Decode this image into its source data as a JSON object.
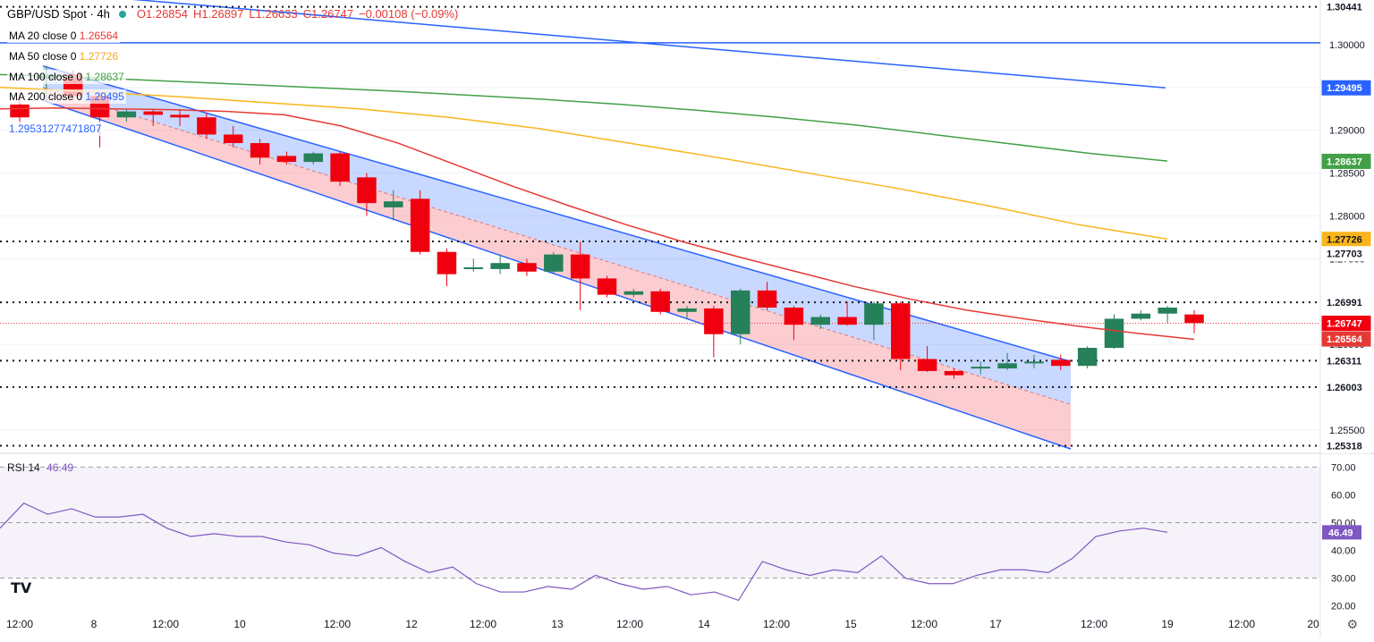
{
  "header": {
    "symbol": "GBP/USD Spot · 4h",
    "o": "O1.26854",
    "h": "H1.26897",
    "l": "L1.26633",
    "c": "C1.26747",
    "chg": "−0.00108 (−0.09%)"
  },
  "ma_legend": [
    {
      "label": "MA 20 close 0",
      "value": "1.26564",
      "color": "#f23645"
    },
    {
      "label": "MA 50 close 0",
      "value": "1.27726",
      "color": "#f5a623"
    },
    {
      "label": "MA 100 close 0",
      "value": "1.28637",
      "color": "#43a047"
    },
    {
      "label": "MA 200 close 0",
      "value": "1.29495",
      "color": "#2962ff"
    }
  ],
  "extra_value": "1.29531277471807",
  "rsi_legend": {
    "label": "RSI 14",
    "value": "46.49"
  },
  "colors": {
    "up": "#26805a",
    "down": "#f0000f",
    "ma20": "#e53935",
    "ma50": "#f9b51b",
    "ma100": "#43a047",
    "ma200": "#2962ff",
    "rsi": "#7e57c2"
  },
  "chart_data": {
    "type": "candlestick",
    "title": "GBP/USD Spot · 4h",
    "y_ticks": [
      "1.30000",
      "1.29500",
      "1.29000",
      "1.28500",
      "1.28000",
      "1.27500",
      "1.27000",
      "1.26500",
      "1.26000",
      "1.25500"
    ],
    "x_ticks": [
      "12:00",
      "8",
      "12:00",
      "10",
      "12:00",
      "12",
      "12:00",
      "13",
      "12:00",
      "14",
      "12:00",
      "15",
      "12:00",
      "17",
      "12:00",
      "19",
      "12:00",
      "20"
    ],
    "ylim": [
      1.2525,
      1.3052
    ],
    "horizontal_levels": [
      1.30441,
      1.27703,
      1.26991,
      1.26311,
      1.26003,
      1.25318
    ],
    "price_labels": [
      {
        "text": "1.30441",
        "bg": "#ffffff",
        "fg": "#131722"
      },
      {
        "text": "1.29495",
        "bg": "#2962ff",
        "fg": "#ffffff"
      },
      {
        "text": "1.28637",
        "bg": "#43a047",
        "fg": "#ffffff"
      },
      {
        "text": "1.27726",
        "bg": "#f9b51b",
        "fg": "#131722"
      },
      {
        "text": "1.27703",
        "bg": "#ffffff",
        "fg": "#131722"
      },
      {
        "text": "1.26991",
        "bg": "#ffffff",
        "fg": "#131722"
      },
      {
        "text": "1.26747",
        "bg": "#f0000f",
        "fg": "#ffffff"
      },
      {
        "text": "1.26564",
        "bg": "#e53935",
        "fg": "#ffffff"
      },
      {
        "text": "1.26311",
        "bg": "#ffffff",
        "fg": "#131722"
      },
      {
        "text": "1.26003",
        "bg": "#ffffff",
        "fg": "#131722"
      },
      {
        "text": "1.25318",
        "bg": "#ffffff",
        "fg": "#131722"
      }
    ],
    "candles": [
      {
        "o": 1.293,
        "h": 1.2945,
        "l": 1.2905,
        "c": 1.2915
      },
      {
        "o": 1.296,
        "h": 1.2975,
        "l": 1.2935,
        "c": 1.2965
      },
      {
        "o": 1.2965,
        "h": 1.297,
        "l": 1.2935,
        "c": 1.294
      },
      {
        "o": 1.294,
        "h": 1.2945,
        "l": 1.288,
        "c": 1.2915
      },
      {
        "o": 1.2915,
        "h": 1.2925,
        "l": 1.291,
        "c": 1.2922
      },
      {
        "o": 1.2922,
        "h": 1.2925,
        "l": 1.2905,
        "c": 1.2918
      },
      {
        "o": 1.2918,
        "h": 1.2925,
        "l": 1.2905,
        "c": 1.2915
      },
      {
        "o": 1.2915,
        "h": 1.292,
        "l": 1.289,
        "c": 1.2895
      },
      {
        "o": 1.2895,
        "h": 1.2905,
        "l": 1.288,
        "c": 1.2885
      },
      {
        "o": 1.2885,
        "h": 1.289,
        "l": 1.286,
        "c": 1.2868
      },
      {
        "o": 1.287,
        "h": 1.2875,
        "l": 1.286,
        "c": 1.2863
      },
      {
        "o": 1.2863,
        "h": 1.2875,
        "l": 1.286,
        "c": 1.2873
      },
      {
        "o": 1.2873,
        "h": 1.2875,
        "l": 1.2835,
        "c": 1.284
      },
      {
        "o": 1.2845,
        "h": 1.285,
        "l": 1.28,
        "c": 1.2815
      },
      {
        "o": 1.281,
        "h": 1.283,
        "l": 1.2795,
        "c": 1.2817
      },
      {
        "o": 1.282,
        "h": 1.283,
        "l": 1.2755,
        "c": 1.2758
      },
      {
        "o": 1.2758,
        "h": 1.2762,
        "l": 1.2718,
        "c": 1.2732
      },
      {
        "o": 1.2738,
        "h": 1.275,
        "l": 1.2735,
        "c": 1.274
      },
      {
        "o": 1.2738,
        "h": 1.2755,
        "l": 1.2732,
        "c": 1.2745
      },
      {
        "o": 1.2745,
        "h": 1.275,
        "l": 1.273,
        "c": 1.2735
      },
      {
        "o": 1.2735,
        "h": 1.2758,
        "l": 1.2732,
        "c": 1.2755
      },
      {
        "o": 1.2755,
        "h": 1.277,
        "l": 1.269,
        "c": 1.2727
      },
      {
        "o": 1.2727,
        "h": 1.273,
        "l": 1.2705,
        "c": 1.2708
      },
      {
        "o": 1.2708,
        "h": 1.2715,
        "l": 1.2705,
        "c": 1.2712
      },
      {
        "o": 1.2712,
        "h": 1.2715,
        "l": 1.2685,
        "c": 1.2688
      },
      {
        "o": 1.2688,
        "h": 1.2695,
        "l": 1.268,
        "c": 1.2692
      },
      {
        "o": 1.2692,
        "h": 1.2695,
        "l": 1.2635,
        "c": 1.2662
      },
      {
        "o": 1.2662,
        "h": 1.2715,
        "l": 1.265,
        "c": 1.2713
      },
      {
        "o": 1.2713,
        "h": 1.2723,
        "l": 1.269,
        "c": 1.2693
      },
      {
        "o": 1.2693,
        "h": 1.2695,
        "l": 1.2655,
        "c": 1.2673
      },
      {
        "o": 1.2673,
        "h": 1.2685,
        "l": 1.2668,
        "c": 1.2682
      },
      {
        "o": 1.2682,
        "h": 1.27,
        "l": 1.2672,
        "c": 1.2673
      },
      {
        "o": 1.2673,
        "h": 1.27,
        "l": 1.2655,
        "c": 1.2698
      },
      {
        "o": 1.2698,
        "h": 1.27,
        "l": 1.262,
        "c": 1.2633
      },
      {
        "o": 1.2633,
        "h": 1.2648,
        "l": 1.2618,
        "c": 1.2619
      },
      {
        "o": 1.2619,
        "h": 1.2622,
        "l": 1.261,
        "c": 1.2614
      },
      {
        "o": 1.2622,
        "h": 1.263,
        "l": 1.2615,
        "c": 1.2624
      },
      {
        "o": 1.2622,
        "h": 1.264,
        "l": 1.262,
        "c": 1.2628
      },
      {
        "o": 1.2628,
        "h": 1.2638,
        "l": 1.2622,
        "c": 1.263
      },
      {
        "o": 1.2632,
        "h": 1.2638,
        "l": 1.262,
        "c": 1.2625
      },
      {
        "o": 1.2625,
        "h": 1.2648,
        "l": 1.2622,
        "c": 1.2646
      },
      {
        "o": 1.2646,
        "h": 1.2685,
        "l": 1.2645,
        "c": 1.268
      },
      {
        "o": 1.268,
        "h": 1.269,
        "l": 1.2678,
        "c": 1.2686
      },
      {
        "o": 1.2686,
        "h": 1.2695,
        "l": 1.2675,
        "c": 1.2693
      },
      {
        "o": 1.2685,
        "h": 1.269,
        "l": 1.2663,
        "c": 1.2675
      }
    ],
    "ma20": [
      1.2925,
      1.2926,
      1.2925,
      1.2924,
      1.2922,
      1.2918,
      1.2905,
      1.2885,
      1.286,
      1.2835,
      1.2812,
      1.279,
      1.277,
      1.2752,
      1.2735,
      1.2718,
      1.2703,
      1.269,
      1.268,
      1.2671,
      1.2663,
      1.2656
    ],
    "ma50": [
      1.295,
      1.2945,
      1.2939,
      1.2932,
      1.2925,
      1.2915,
      1.2902,
      1.2885,
      1.2868,
      1.285,
      1.2832,
      1.2812,
      1.279,
      1.2773
    ],
    "ma100": [
      1.2965,
      1.2962,
      1.2958,
      1.2954,
      1.295,
      1.2946,
      1.2941,
      1.2936,
      1.293,
      1.2923,
      1.2915,
      1.2906,
      1.2895,
      1.2884,
      1.2873,
      1.2864
    ],
    "ma200": [
      1.3052,
      1.3045,
      1.3035,
      1.3024,
      1.3014,
      1.3003,
      1.2993,
      1.2983,
      1.2973,
      1.2962,
      1.295
    ],
    "rsi": {
      "label": "RSI 14",
      "ylim": [
        16,
        74
      ],
      "y_ticks": [
        "70.00",
        "60.00",
        "50.00",
        "40.00",
        "30.00",
        "20.00"
      ],
      "levels": [
        70,
        50,
        30
      ],
      "values": [
        48,
        57,
        53,
        55,
        52,
        52,
        53,
        48,
        45,
        46,
        45,
        45,
        43,
        42,
        39,
        38,
        41,
        36,
        32,
        34,
        28,
        25,
        25,
        27,
        26,
        31,
        28,
        26,
        27,
        24,
        25,
        22,
        36,
        33,
        31,
        33,
        32,
        38,
        30,
        28,
        28,
        31,
        33,
        33,
        32,
        37,
        45,
        47,
        48,
        46.5
      ]
    }
  }
}
